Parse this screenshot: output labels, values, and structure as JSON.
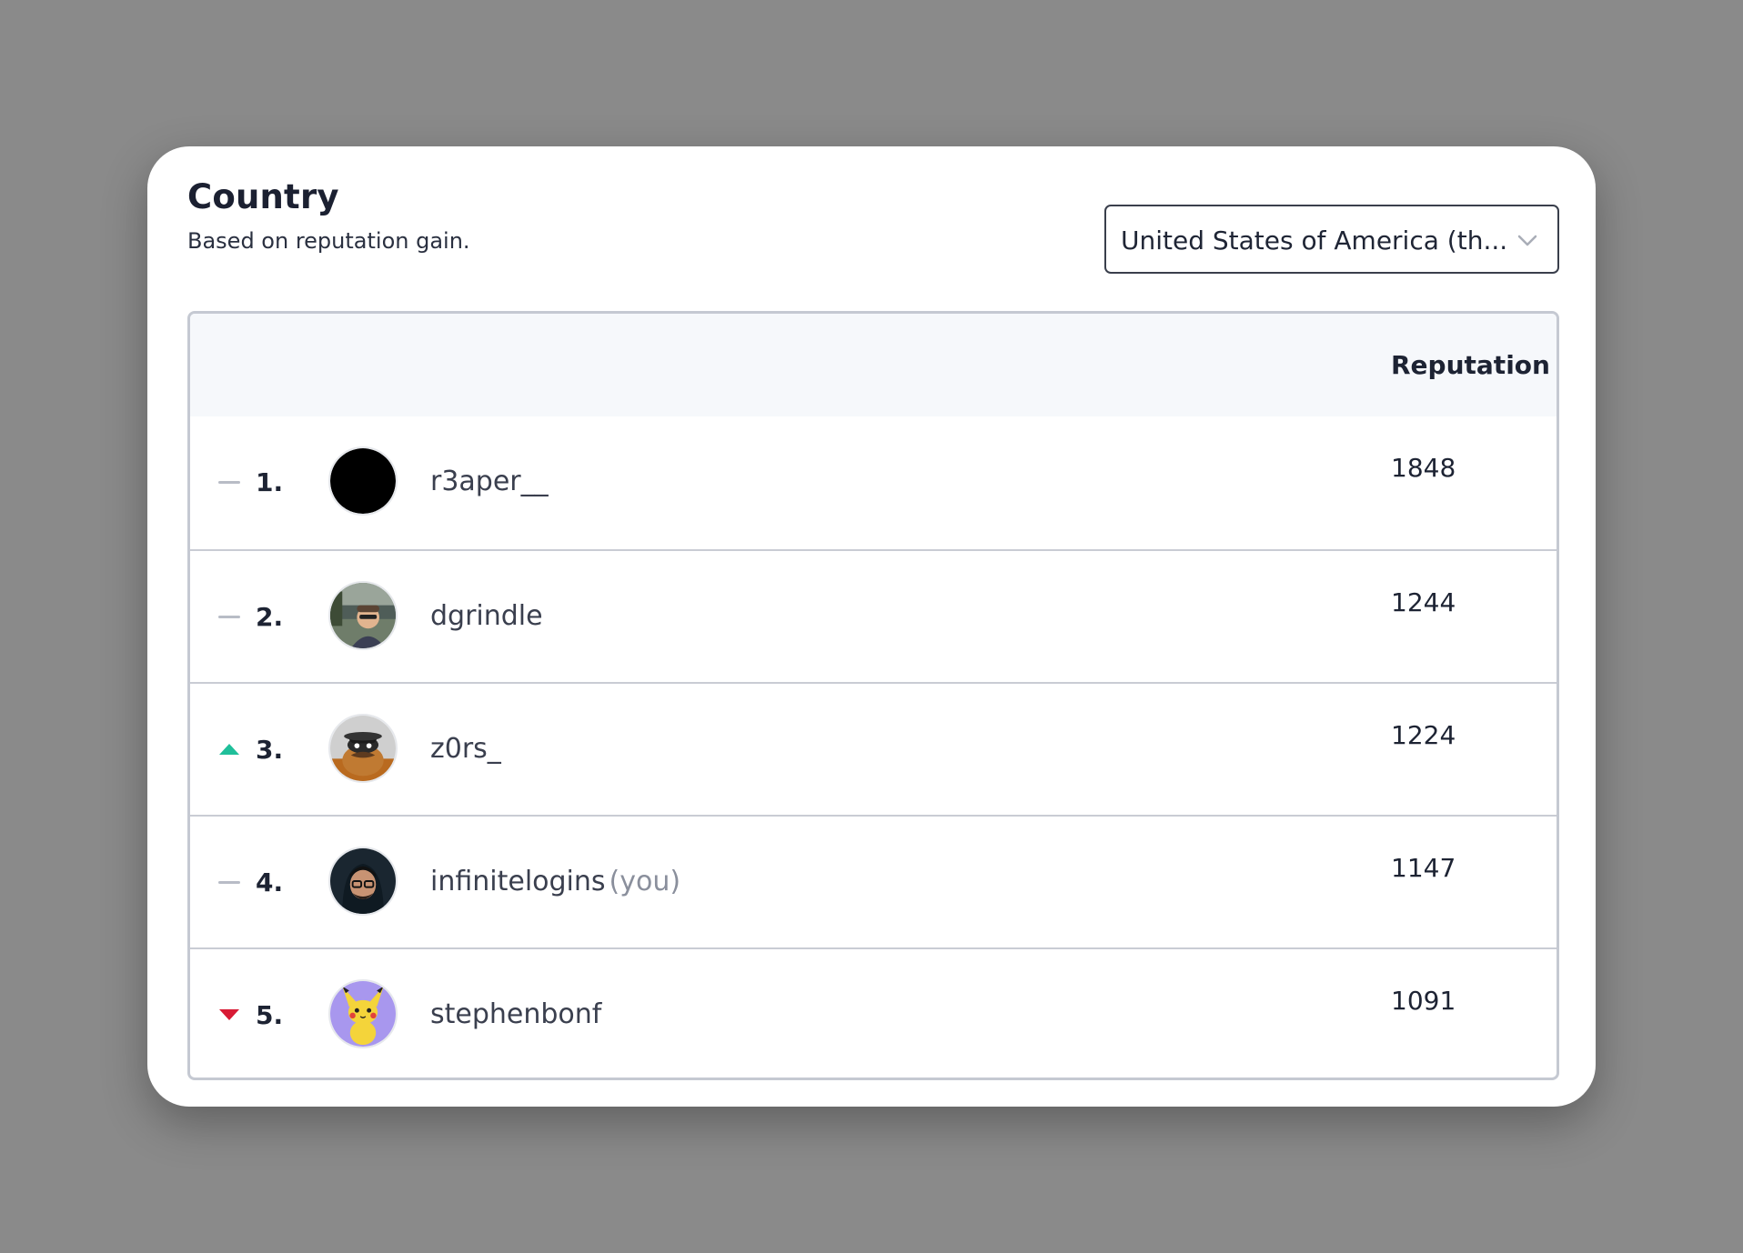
{
  "header": {
    "title": "Country",
    "subtitle": "Based on reputation gain."
  },
  "country_select": {
    "value": "United States of America (th...",
    "icon": "chevron-down-icon"
  },
  "table": {
    "column_header": "Reputation",
    "rows": [
      {
        "trend": "unchanged",
        "rank": "1.",
        "username": "r3aper__",
        "you_label": "",
        "reputation": "1848"
      },
      {
        "trend": "unchanged",
        "rank": "2.",
        "username": "dgrindle",
        "you_label": "",
        "reputation": "1244"
      },
      {
        "trend": "up",
        "rank": "3.",
        "username": "z0rs_",
        "you_label": "",
        "reputation": "1224"
      },
      {
        "trend": "unchanged",
        "rank": "4.",
        "username": "infinitelogins",
        "you_label": "(you)",
        "reputation": "1147"
      },
      {
        "trend": "down",
        "rank": "5.",
        "username": "stephenbonf",
        "you_label": "",
        "reputation": "1091"
      }
    ]
  },
  "colors": {
    "trend_up": "#1fbf9a",
    "trend_down": "#d81b35",
    "trend_unchanged": "#b8bcc6"
  }
}
